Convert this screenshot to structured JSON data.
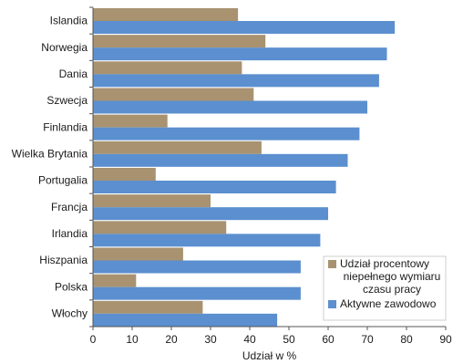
{
  "chart_data": {
    "type": "bar",
    "orientation": "horizontal",
    "categories": [
      "Islandia",
      "Norwegia",
      "Dania",
      "Szwecja",
      "Finlandia",
      "Wielka Brytania",
      "Portugalia",
      "Francja",
      "Irlandia",
      "Hiszpania",
      "Polska",
      "Włochy"
    ],
    "series": [
      {
        "name": "Udział procentowy niepełnego wymiaru czasu pracy",
        "color": "#a89270",
        "values": [
          37,
          44,
          38,
          41,
          19,
          43,
          16,
          30,
          34,
          23,
          11,
          28
        ]
      },
      {
        "name": "Aktywne zawodowo",
        "color": "#5b8fcf",
        "values": [
          77,
          75,
          73,
          70,
          68,
          65,
          62,
          60,
          58,
          53,
          53,
          47
        ]
      }
    ],
    "xlabel": "Udział w %",
    "xlim": [
      0,
      90
    ],
    "xticks": [
      0,
      10,
      20,
      30,
      40,
      50,
      60,
      70,
      80,
      90
    ],
    "legend": {
      "position": "bottom-right",
      "entries": [
        {
          "lines": [
            "Udział procentowy",
            "niepełnego wymiaru",
            "czasu pracy"
          ],
          "color": "#a89270"
        },
        {
          "lines": [
            "Aktywne zawodowo"
          ],
          "color": "#5b8fcf"
        }
      ]
    },
    "grid": false
  }
}
